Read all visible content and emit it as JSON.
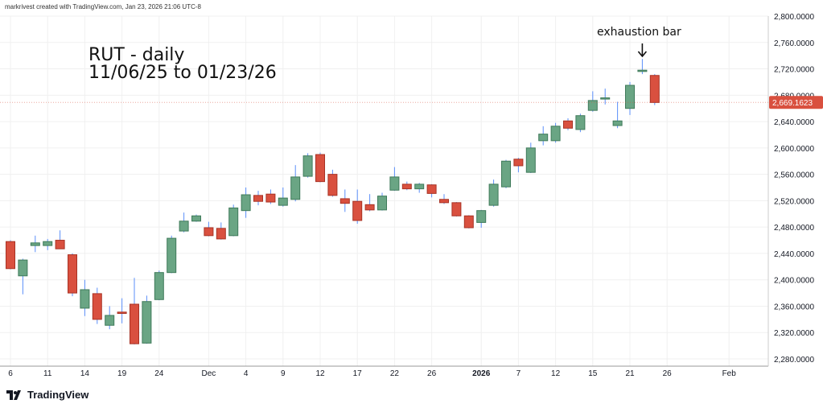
{
  "header": {
    "credit": "markrivest created with TradingView.com, Jan 23, 2026 21:06 UTC-8"
  },
  "footer": {
    "logo_text": "TradingView"
  },
  "colors": {
    "up": "#6aa584",
    "down": "#d9503f",
    "wick": "#5b8ff9",
    "grid": "#f0f0f0",
    "last_price_bg": "#d9503f"
  },
  "chart_data": {
    "type": "candlestick",
    "title": "RUT - daily",
    "subtitle": "11/06/25 to 01/23/26",
    "annotation": {
      "text": "exhaustion bar",
      "date": "2026-01-22"
    },
    "ylim": [
      2270,
      2820
    ],
    "y_ticks": [
      "2,280.0000",
      "2,320.0000",
      "2,360.0000",
      "2,400.0000",
      "2,440.0000",
      "2,480.0000",
      "2,520.0000",
      "2,560.0000",
      "2,600.0000",
      "2,640.0000",
      "2,680.0000",
      "2,720.0000",
      "2,760.0000",
      "2,800.0000"
    ],
    "y_tick_values": [
      2280,
      2320,
      2360,
      2400,
      2440,
      2480,
      2520,
      2560,
      2600,
      2640,
      2680,
      2720,
      2760,
      2800
    ],
    "x_ticks": [
      {
        "label": "6",
        "i": 0
      },
      {
        "label": "11",
        "i": 3
      },
      {
        "label": "14",
        "i": 6
      },
      {
        "label": "19",
        "i": 9
      },
      {
        "label": "24",
        "i": 12
      },
      {
        "label": "Dec",
        "i": 16
      },
      {
        "label": "4",
        "i": 19
      },
      {
        "label": "9",
        "i": 22
      },
      {
        "label": "12",
        "i": 25
      },
      {
        "label": "17",
        "i": 28
      },
      {
        "label": "22",
        "i": 31
      },
      {
        "label": "26",
        "i": 34
      },
      {
        "label": "2026",
        "i": 38
      },
      {
        "label": "7",
        "i": 41
      },
      {
        "label": "12",
        "i": 44
      },
      {
        "label": "15",
        "i": 47
      },
      {
        "label": "21",
        "i": 50
      },
      {
        "label": "26",
        "i": 53
      },
      {
        "label": "Feb",
        "i": 58
      }
    ],
    "last_price": {
      "label": "2,669.1623",
      "value": 2669.16
    },
    "columns": [
      "date",
      "open",
      "high",
      "low",
      "close"
    ],
    "candles": [
      [
        "2025-11-06",
        2458,
        2460,
        2416,
        2417
      ],
      [
        "2025-11-07",
        2406,
        2432,
        2378,
        2430
      ],
      [
        "2025-11-10",
        2452,
        2467,
        2442,
        2456
      ],
      [
        "2025-11-11",
        2452,
        2462,
        2445,
        2458
      ],
      [
        "2025-11-12",
        2460,
        2475,
        2447,
        2447
      ],
      [
        "2025-11-13",
        2438,
        2440,
        2375,
        2380
      ],
      [
        "2025-11-14",
        2357,
        2400,
        2345,
        2385
      ],
      [
        "2025-11-17",
        2379,
        2388,
        2333,
        2340
      ],
      [
        "2025-11-18",
        2331,
        2360,
        2325,
        2346
      ],
      [
        "2025-11-19",
        2351,
        2372,
        2334,
        2349
      ],
      [
        "2025-11-20",
        2363,
        2403,
        2302,
        2303
      ],
      [
        "2025-11-21",
        2304,
        2376,
        2303,
        2367
      ],
      [
        "2025-11-24",
        2370,
        2414,
        2369,
        2411
      ],
      [
        "2025-11-25",
        2411,
        2467,
        2410,
        2463
      ],
      [
        "2025-11-26",
        2474,
        2502,
        2472,
        2489
      ],
      [
        "2025-11-28",
        2489,
        2499,
        2488,
        2497
      ],
      [
        "2025-12-01",
        2479,
        2488,
        2466,
        2467
      ],
      [
        "2025-12-02",
        2478,
        2487,
        2461,
        2462
      ],
      [
        "2025-12-03",
        2467,
        2514,
        2466,
        2509
      ],
      [
        "2025-12-04",
        2505,
        2540,
        2494,
        2529
      ],
      [
        "2025-12-05",
        2528,
        2535,
        2513,
        2519
      ],
      [
        "2025-12-08",
        2530,
        2537,
        2515,
        2518
      ],
      [
        "2025-12-09",
        2513,
        2540,
        2511,
        2524
      ],
      [
        "2025-12-10",
        2522,
        2574,
        2519,
        2556
      ],
      [
        "2025-12-11",
        2557,
        2592,
        2555,
        2588
      ],
      [
        "2025-12-12",
        2590,
        2593,
        2548,
        2549
      ],
      [
        "2025-12-15",
        2560,
        2567,
        2526,
        2528
      ],
      [
        "2025-12-16",
        2523,
        2537,
        2503,
        2516
      ],
      [
        "2025-12-17",
        2519,
        2537,
        2485,
        2490
      ],
      [
        "2025-12-18",
        2514,
        2530,
        2504,
        2506
      ],
      [
        "2025-12-19",
        2506,
        2532,
        2505,
        2527
      ],
      [
        "2025-12-22",
        2536,
        2571,
        2535,
        2556
      ],
      [
        "2025-12-23",
        2545,
        2549,
        2536,
        2538
      ],
      [
        "2025-12-24",
        2538,
        2547,
        2532,
        2545
      ],
      [
        "2025-12-26",
        2544,
        2545,
        2525,
        2531
      ],
      [
        "2025-12-29",
        2522,
        2530,
        2515,
        2517
      ],
      [
        "2025-12-30",
        2517,
        2518,
        2496,
        2497
      ],
      [
        "2025-12-31",
        2497,
        2498,
        2478,
        2479
      ],
      [
        "2026-01-02",
        2487,
        2506,
        2479,
        2505
      ],
      [
        "2026-01-05",
        2513,
        2552,
        2511,
        2545
      ],
      [
        "2026-01-06",
        2541,
        2582,
        2539,
        2580
      ],
      [
        "2026-01-07",
        2583,
        2585,
        2563,
        2573
      ],
      [
        "2026-01-08",
        2563,
        2608,
        2562,
        2600
      ],
      [
        "2026-01-09",
        2611,
        2633,
        2604,
        2621
      ],
      [
        "2026-01-12",
        2611,
        2638,
        2608,
        2633
      ],
      [
        "2026-01-13",
        2641,
        2645,
        2627,
        2630
      ],
      [
        "2026-01-14",
        2628,
        2652,
        2624,
        2649
      ],
      [
        "2026-01-15",
        2657,
        2686,
        2655,
        2672
      ],
      [
        "2026-01-16",
        2675,
        2690,
        2666,
        2676
      ],
      [
        "2026-01-20",
        2634,
        2670,
        2630,
        2641
      ],
      [
        "2026-01-21",
        2660,
        2700,
        2650,
        2695
      ],
      [
        "2026-01-22",
        2716,
        2735,
        2712,
        2718
      ],
      [
        "2026-01-23",
        2710,
        2712,
        2665,
        2669
      ]
    ]
  }
}
